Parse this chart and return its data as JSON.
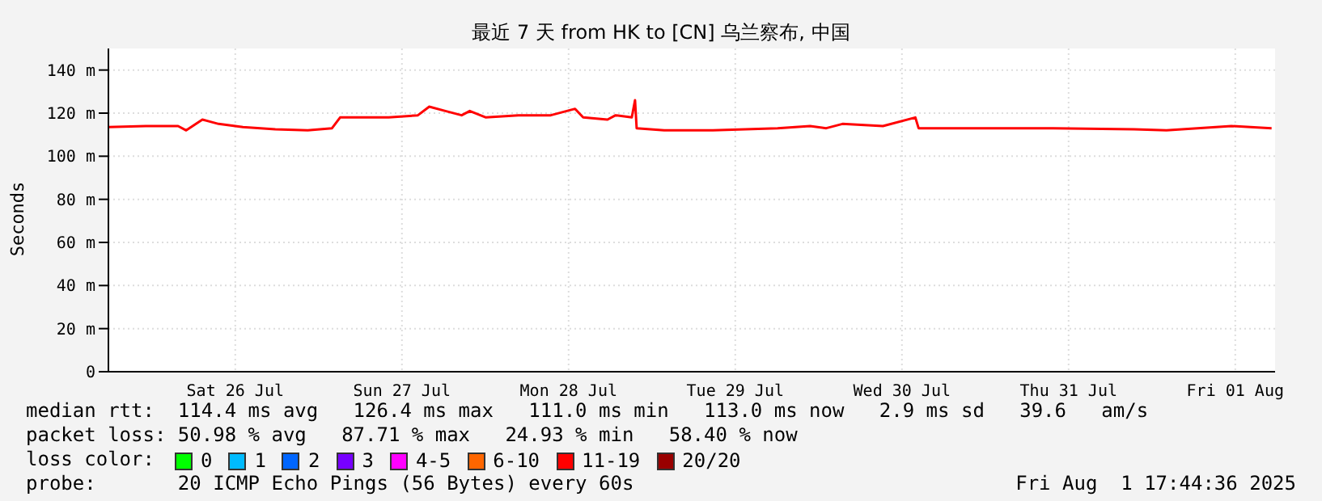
{
  "chart_data": {
    "type": "line",
    "title": "最近 7 天 from HK to [CN] 乌兰察布, 中国",
    "ylabel": "Seconds",
    "x": [
      "2025-07-25T17:44",
      "2025-07-25T23:06",
      "2025-07-26T03:46",
      "2025-07-26T04:56",
      "2025-07-26T07:16",
      "2025-07-26T09:36",
      "2025-07-26T13:06",
      "2025-07-26T17:46",
      "2025-07-26T22:26",
      "2025-07-27T01:56",
      "2025-07-27T03:06",
      "2025-07-27T10:06",
      "2025-07-27T14:18",
      "2025-07-27T15:56",
      "2025-07-27T18:16",
      "2025-07-27T20:36",
      "2025-07-27T21:46",
      "2025-07-28T00:06",
      "2025-07-28T04:46",
      "2025-07-28T09:26",
      "2025-07-28T12:56",
      "2025-07-28T14:06",
      "2025-07-28T17:36",
      "2025-07-28T18:46",
      "2025-07-28T21:06",
      "2025-07-28T21:34",
      "2025-07-28T21:48",
      "2025-07-29T01:46",
      "2025-07-29T08:46",
      "2025-07-29T18:06",
      "2025-07-29T22:46",
      "2025-07-30T01:06",
      "2025-07-30T03:26",
      "2025-07-30T09:16",
      "2025-07-30T13:56",
      "2025-07-30T14:24",
      "2025-07-30T22:06",
      "2025-07-31T09:46",
      "2025-07-31T21:26",
      "2025-08-01T02:06",
      "2025-08-01T11:26",
      "2025-08-01T17:14"
    ],
    "series": [
      {
        "color": "#ff0000",
        "values": [
          113.5,
          114,
          114,
          112,
          117,
          115,
          113.5,
          112.5,
          112,
          113,
          118,
          118,
          119,
          123,
          121,
          119,
          121,
          118,
          119,
          119,
          122,
          118,
          117,
          119,
          118,
          126,
          113,
          112,
          112,
          113,
          114,
          113,
          115,
          114,
          118,
          113,
          113,
          113,
          112.5,
          112,
          114,
          113
        ]
      }
    ],
    "xlim": [
      "2025-07-25T17:44",
      "2025-08-01T17:44"
    ],
    "xticks": [
      {
        "value": "2025-07-26T12:00",
        "label": "Sat 26 Jul"
      },
      {
        "value": "2025-07-27T12:00",
        "label": "Sun 27 Jul"
      },
      {
        "value": "2025-07-28T12:00",
        "label": "Mon 28 Jul"
      },
      {
        "value": "2025-07-29T12:00",
        "label": "Tue 29 Jul"
      },
      {
        "value": "2025-07-30T12:00",
        "label": "Wed 30 Jul"
      },
      {
        "value": "2025-07-31T12:00",
        "label": "Thu 31 Jul"
      },
      {
        "value": "2025-08-01T12:00",
        "label": "Fri 01 Aug"
      }
    ],
    "ylim": [
      0,
      150
    ],
    "yticks": [
      0,
      {
        "value": 20,
        "label": "20 m"
      },
      {
        "value": 40,
        "label": "40 m"
      },
      {
        "value": 60,
        "label": "60 m"
      },
      {
        "value": 80,
        "label": "80 m"
      },
      {
        "value": 100,
        "label": "100 m"
      },
      {
        "value": 120,
        "label": "120 m"
      },
      {
        "value": 140,
        "label": "140 m"
      }
    ],
    "grid": true,
    "marker": "none",
    "line_style": "solid",
    "annotations": [
      "median rtt:  114.4 ms avg   126.4 ms max   111.0 ms min   113.0 ms now   2.9 ms sd   39.6   am/s",
      "packet loss: 50.98 % avg   87.71 % max   24.93 % min   58.40 % now",
      "loss color:",
      "0",
      "1",
      "2",
      "3",
      "4-5",
      "6-10",
      "11-19",
      "20/20",
      "probe:       20 ICMP Echo Pings (56 Bytes) every 60s",
      "Fri Aug  1 17:44:36 2025"
    ]
  }
}
